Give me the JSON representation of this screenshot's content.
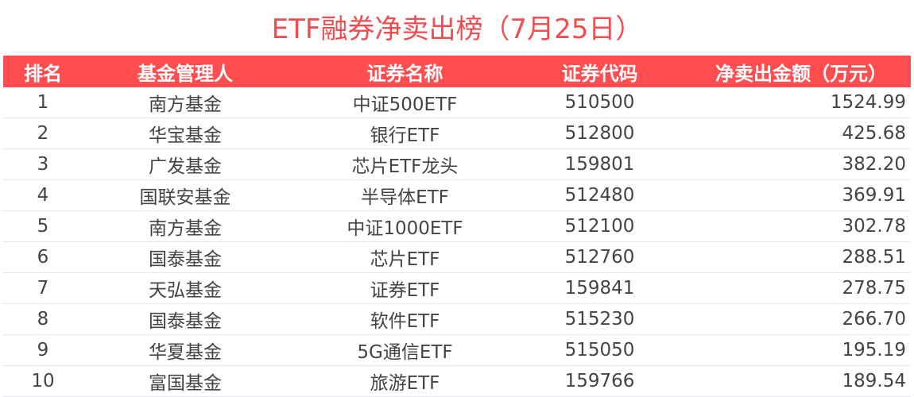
{
  "title": "ETF融券净卖出榜（7月25日）",
  "colors": {
    "header_bg": "#ff4d50",
    "title": "#f24c50"
  },
  "table": {
    "columns": [
      "排名",
      "基金管理人",
      "证券名称",
      "证券代码",
      "净卖出金额（万元）"
    ],
    "rows": [
      [
        "1",
        "南方基金",
        "中证500ETF",
        "510500",
        "1524.99"
      ],
      [
        "2",
        "华宝基金",
        "银行ETF",
        "512800",
        "425.68"
      ],
      [
        "3",
        "广发基金",
        "芯片ETF龙头",
        "159801",
        "382.20"
      ],
      [
        "4",
        "国联安基金",
        "半导体ETF",
        "512480",
        "369.91"
      ],
      [
        "5",
        "南方基金",
        "中证1000ETF",
        "512100",
        "302.78"
      ],
      [
        "6",
        "国泰基金",
        "芯片ETF",
        "512760",
        "288.51"
      ],
      [
        "7",
        "天弘基金",
        "证券ETF",
        "159841",
        "278.75"
      ],
      [
        "8",
        "国泰基金",
        "软件ETF",
        "515230",
        "266.70"
      ],
      [
        "9",
        "华夏基金",
        "5G通信ETF",
        "515050",
        "195.19"
      ],
      [
        "10",
        "富国基金",
        "旅游ETF",
        "159766",
        "189.54"
      ]
    ]
  }
}
